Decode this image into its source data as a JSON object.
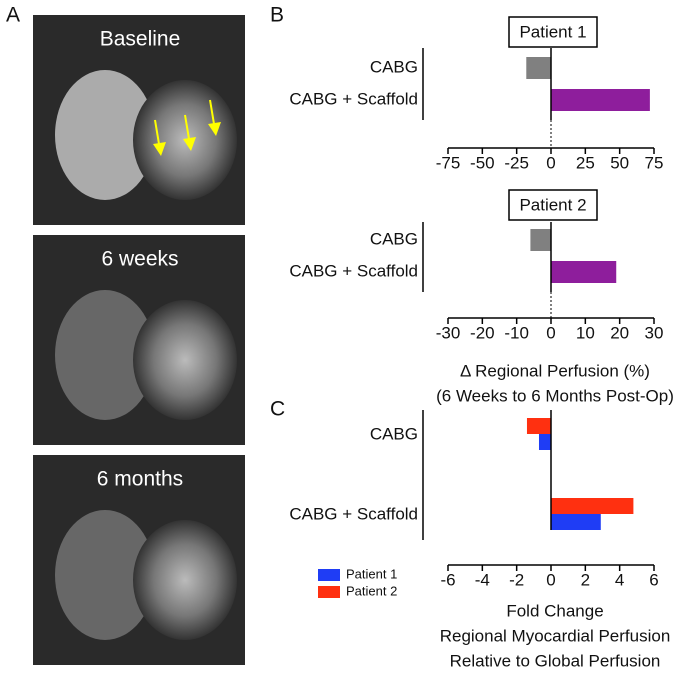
{
  "panels": {
    "a": {
      "label": "A",
      "images": [
        "Baseline",
        "6 weeks",
        "6 months"
      ]
    },
    "b": {
      "label": "B"
    },
    "c": {
      "label": "C"
    }
  },
  "chart_data": [
    {
      "type": "hbar",
      "title": "Patient 1",
      "categories": [
        "CABG",
        "CABG + Scaffold"
      ],
      "values": [
        -18,
        72
      ],
      "colors": [
        "#808080",
        "#8e1e9c"
      ],
      "xlim": [
        -75,
        75
      ],
      "xticks": [
        -75,
        -50,
        -25,
        0,
        25,
        50,
        75
      ]
    },
    {
      "type": "hbar",
      "title": "Patient 2",
      "categories": [
        "CABG",
        "CABG + Scaffold"
      ],
      "values": [
        -6,
        19
      ],
      "colors": [
        "#808080",
        "#8e1e9c"
      ],
      "xlim": [
        -30,
        30
      ],
      "xticks": [
        -30,
        -20,
        -10,
        0,
        10,
        20,
        30
      ],
      "xlabel": [
        "Δ Regional Perfusion (%)",
        "(6 Weeks to 6 Months Post-Op)"
      ]
    },
    {
      "type": "grouped-hbar",
      "categories": [
        "CABG",
        "CABG + Scaffold"
      ],
      "series": [
        {
          "name": "Patient 1",
          "color": "#1f3df5",
          "values": [
            -0.7,
            2.9
          ]
        },
        {
          "name": "Patient 2",
          "color": "#ff3010",
          "values": [
            -1.4,
            4.8
          ]
        }
      ],
      "xlim": [
        -6,
        6
      ],
      "xticks": [
        -6,
        -4,
        -2,
        0,
        2,
        4,
        6
      ],
      "xlabel": [
        "Fold Change",
        "Regional Myocardial Perfusion",
        "Relative to Global Perfusion"
      ],
      "legend": "bottom-left"
    }
  ]
}
